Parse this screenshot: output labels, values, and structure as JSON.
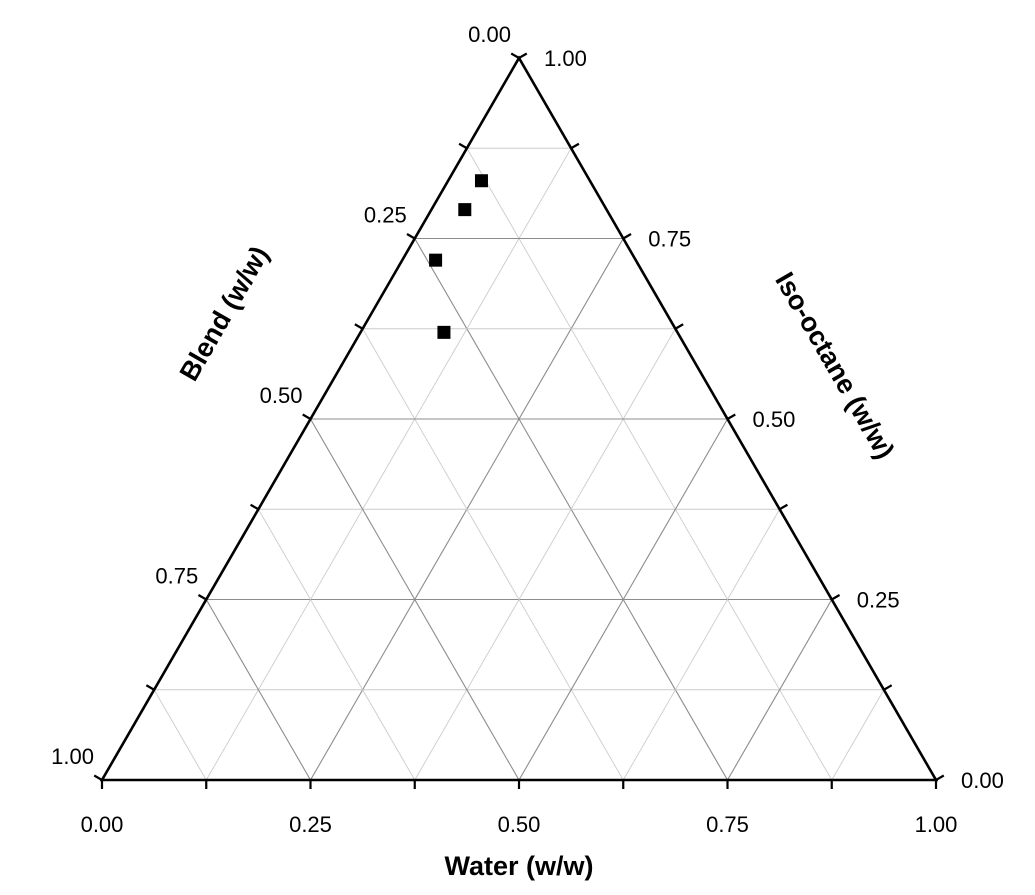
{
  "chart_data": {
    "type": "scatter",
    "subtype": "ternary",
    "title": "",
    "axes": {
      "bottom": {
        "label": "Water (w/w)",
        "ticks": [
          "0.00",
          "0.25",
          "0.50",
          "0.75",
          "1.00"
        ]
      },
      "left": {
        "label": "Blend (w/w)",
        "ticks": [
          "0.00",
          "0.25",
          "0.50",
          "0.75",
          "1.00"
        ]
      },
      "right": {
        "label": "Iso-octane (w/w)",
        "ticks": [
          "0.00",
          "0.25",
          "0.50",
          "0.75",
          "1.00"
        ]
      }
    },
    "range": [
      0,
      1
    ],
    "grid": true,
    "grid_step": 0.125,
    "marker": "square",
    "colors": {
      "frame": "#000000",
      "grid_major": "#8c8c8c",
      "grid_minor": "#cccccc",
      "marker": "#000000"
    },
    "series": [
      {
        "points": [
          {
            "water": 0.04,
            "blend": 0.13,
            "iso_octane": 0.83
          },
          {
            "water": 0.04,
            "blend": 0.17,
            "iso_octane": 0.79
          },
          {
            "water": 0.04,
            "blend": 0.24,
            "iso_octane": 0.72
          },
          {
            "water": 0.1,
            "blend": 0.28,
            "iso_octane": 0.62
          }
        ]
      }
    ]
  }
}
